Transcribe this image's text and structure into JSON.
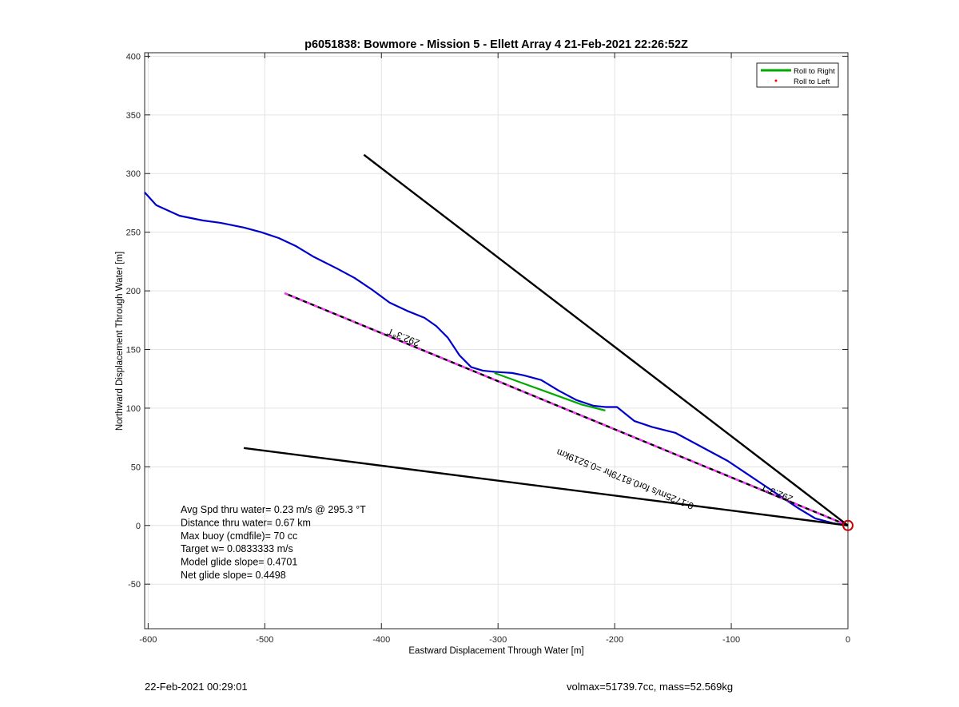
{
  "chart_data": {
    "type": "line",
    "title": "p6051838: Bowmore - Mission 5 - Ellett Array 4 21-Feb-2021 22:26:52Z",
    "xlabel": "Eastward Displacement Through Water [m]",
    "ylabel": "Northward Displacement Through Water [m]",
    "xlim": [
      -603,
      0
    ],
    "ylim": [
      -88,
      403
    ],
    "xticks": [
      -600,
      -500,
      -400,
      -300,
      -200,
      -100,
      0
    ],
    "xtick_labels": [
      "-600",
      "-500",
      "-400",
      "-300",
      "-200",
      "-100",
      "0"
    ],
    "yticks": [
      -50,
      0,
      50,
      100,
      150,
      200,
      250,
      300,
      350,
      400
    ],
    "ytick_labels": [
      "-50",
      "0",
      "50",
      "100",
      "150",
      "200",
      "250",
      "300",
      "350",
      "400"
    ],
    "grid": true,
    "legend_position": "top-right",
    "legend": [
      {
        "label": "Roll to Right",
        "color": "#00aa00",
        "marker": "line"
      },
      {
        "label": "Roll to Left",
        "color": "#ff0000",
        "marker": "dot"
      }
    ],
    "series": [
      {
        "color": "#0000cc",
        "x": [
          -603,
          -593,
          -573,
          -553,
          -538,
          -518,
          -503,
          -488,
          -473,
          -458,
          -438,
          -423,
          -408,
          -393,
          -378,
          -363,
          -353,
          -343,
          -333,
          -323,
          -313,
          -303,
          -288,
          -278,
          -263,
          -248,
          -233,
          -218,
          -208,
          -198,
          -183,
          -168,
          -148,
          -133,
          -118,
          -103,
          -88,
          -73,
          -58,
          -43,
          -28,
          -13,
          0
        ],
        "y": [
          284,
          273,
          264,
          260,
          258,
          254,
          250,
          245,
          238,
          229,
          219,
          211,
          201,
          190,
          183,
          177,
          170,
          160,
          145,
          135,
          132,
          131,
          130,
          128,
          124,
          115,
          107,
          102,
          101,
          101,
          89,
          84,
          79,
          71,
          63,
          55,
          45,
          35,
          25,
          15,
          6,
          2,
          0
        ]
      },
      {
        "name": "Roll to Right",
        "color": "#00aa00",
        "x": [
          -303,
          -278,
          -253,
          -228,
          -208
        ],
        "y": [
          130,
          121,
          112,
          103,
          98
        ]
      },
      {
        "color": "#000000",
        "style": "dashed-magenta",
        "x": [
          -483,
          0
        ],
        "y": [
          198,
          0
        ]
      },
      {
        "color": "#000000",
        "x": [
          -415,
          0
        ],
        "y": [
          316,
          0
        ]
      },
      {
        "color": "#000000",
        "x": [
          -518,
          0
        ],
        "y": [
          66,
          0
        ]
      }
    ],
    "end_marker": {
      "x": 0,
      "y": 0,
      "color": "#cc0000"
    },
    "annotations": [
      {
        "text": "292.3°T",
        "x": -380,
        "y": 163,
        "rotate": 22
      },
      {
        "text": "292.3°T",
        "x": -60,
        "y": 30,
        "rotate": 22
      },
      {
        "text": "0.1725m/s for0.8179hr =0.5219km",
        "x": -190,
        "y": 42,
        "rotate": 22
      }
    ],
    "text_block": [
      "Avg Spd thru water=  0.23 m/s @ 295.3 °T",
      "Distance thru water=  0.67 km",
      "Max buoy (cmdfile)= 70 cc",
      "Target w= 0.0833333 m/s",
      "Model glide slope= 0.4701",
      "Net glide slope= 0.4498"
    ]
  },
  "footer": {
    "left": "22-Feb-2021 00:29:01",
    "right": "volmax=51739.7cc, mass=52.569kg"
  }
}
